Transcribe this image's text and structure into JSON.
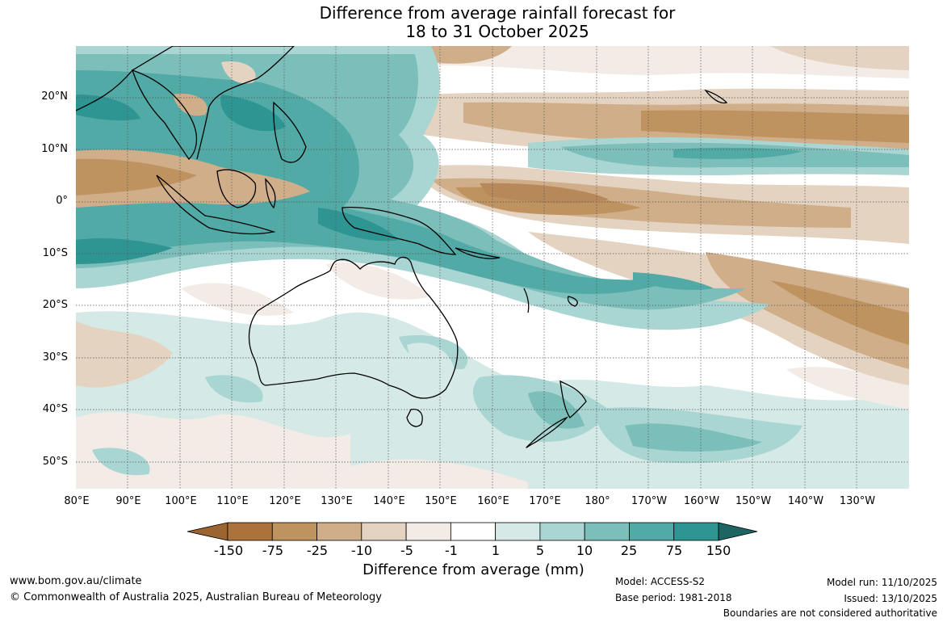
{
  "title": {
    "line1": "Difference from average rainfall forecast for",
    "line2": "18 to 31 October 2025"
  },
  "axes": {
    "lat_labels": [
      "20°N",
      "10°N",
      "0°",
      "10°S",
      "20°S",
      "30°S",
      "40°S",
      "50°S"
    ],
    "lon_labels": [
      "80°E",
      "90°E",
      "100°E",
      "110°E",
      "120°E",
      "130°E",
      "140°E",
      "150°E",
      "160°E",
      "170°E",
      "180°",
      "170°W",
      "160°W",
      "150°W",
      "140°W",
      "130°W"
    ],
    "lat_range": [
      -55,
      30
    ],
    "lon_range": [
      80,
      240
    ]
  },
  "legend": {
    "title": "Difference from average (mm)",
    "ticks": [
      "-150",
      "-75",
      "-25",
      "-10",
      "-5",
      "-1",
      "1",
      "5",
      "10",
      "25",
      "75",
      "150"
    ],
    "colors": [
      "#9c6430",
      "#ac723c",
      "#bf935f",
      "#d0ae8a",
      "#e3d3c0",
      "#f3ebe5",
      "#ffffff",
      "#d5e9e6",
      "#a9d5d2",
      "#7cbeba",
      "#52aaa7",
      "#2e9592",
      "#1d6462"
    ]
  },
  "footer": {
    "website": "www.bom.gov.au/climate",
    "copyright": "© Commonwealth of Australia 2025, Australian Bureau of Meteorology",
    "model": "Model: ACCESS-S2",
    "base_period": "Base period: 1981-2018",
    "model_run": "Model run: 11/10/2025",
    "issued": "Issued: 13/10/2025",
    "disclaimer": "Boundaries are not considered authoritative"
  }
}
